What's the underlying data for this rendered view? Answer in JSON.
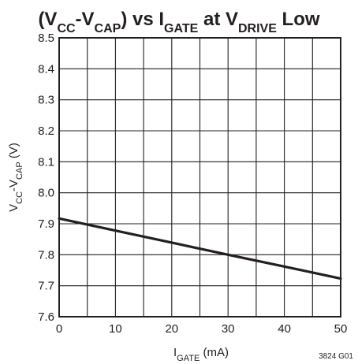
{
  "chart_data": {
    "type": "line",
    "title": {
      "parts": [
        {
          "t": "(V",
          "sub": false
        },
        {
          "t": "CC",
          "sub": true
        },
        {
          "t": "-V",
          "sub": false
        },
        {
          "t": "CAP",
          "sub": true
        },
        {
          "t": ") vs I",
          "sub": false
        },
        {
          "t": "GATE",
          "sub": true
        },
        {
          "t": " at V",
          "sub": false
        },
        {
          "t": "DRIVE",
          "sub": true
        },
        {
          "t": " Low",
          "sub": false
        }
      ]
    },
    "xlabel": {
      "parts": [
        {
          "t": "I",
          "sub": false
        },
        {
          "t": "GATE",
          "sub": true
        },
        {
          "t": " (mA)",
          "sub": false
        }
      ]
    },
    "ylabel": {
      "parts": [
        {
          "t": "V",
          "sub": false
        },
        {
          "t": "CC",
          "sub": true
        },
        {
          "t": "-V",
          "sub": false
        },
        {
          "t": "CAP",
          "sub": true
        },
        {
          "t": " (V)",
          "sub": false
        }
      ]
    },
    "xlim": [
      0,
      50
    ],
    "ylim": [
      7.6,
      8.5
    ],
    "xticks": [
      "0",
      "10",
      "20",
      "30",
      "40",
      "50"
    ],
    "yticks": [
      "7.6",
      "7.7",
      "7.8",
      "7.9",
      "8.0",
      "8.1",
      "8.2",
      "8.3",
      "8.4",
      "8.5"
    ],
    "x_minor_step": 5,
    "y_grid_step": 0.1,
    "grid": true,
    "series": [
      {
        "x": [
          0,
          10,
          20,
          30,
          40,
          50
        ],
        "y": [
          7.917,
          7.878,
          7.839,
          7.8,
          7.762,
          7.723
        ]
      }
    ],
    "annotation": "3824 G01"
  }
}
